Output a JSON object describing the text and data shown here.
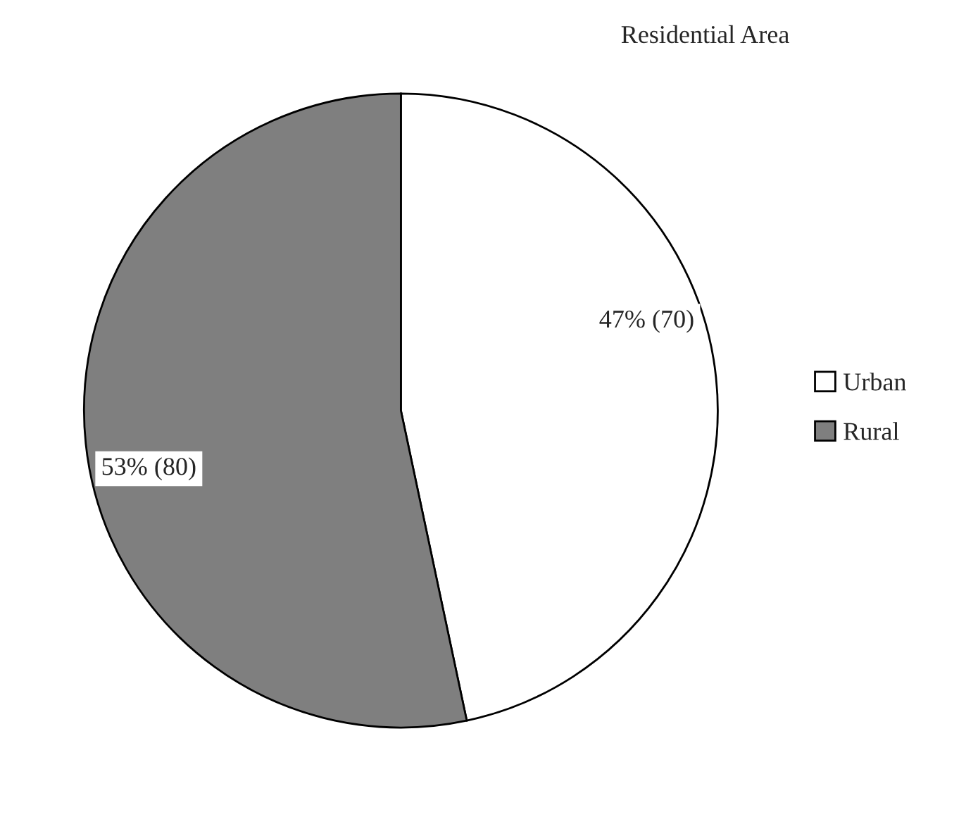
{
  "chart_data": {
    "type": "pie",
    "title": "Residential Area",
    "categories": [
      "Urban",
      "Rural"
    ],
    "values": [
      70,
      80
    ],
    "colors": [
      "#ffffff",
      "#7f7f7f"
    ],
    "value_labels": [
      "47% (70)",
      "53% (80)"
    ],
    "legend": "right"
  }
}
